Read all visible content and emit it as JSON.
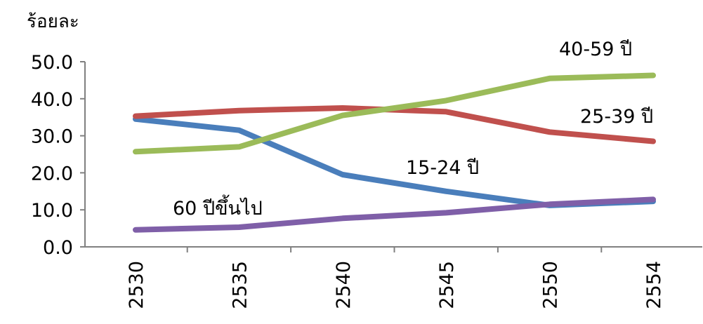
{
  "chart_data": {
    "type": "line",
    "title": "",
    "xlabel": "",
    "ylabel": "ร้อยละ",
    "categories": [
      "2530",
      "2535",
      "2540",
      "2545",
      "2550",
      "2554"
    ],
    "y_ticks": [
      "0.0",
      "10.0",
      "20.0",
      "30.0",
      "40.0",
      "50.0"
    ],
    "ylim": [
      0,
      50
    ],
    "grid": false,
    "legend": "labels-on-lines",
    "series": [
      {
        "name": "15-24 ปี",
        "color": "#4a7ebb",
        "values": [
          34.5,
          31.5,
          19.5,
          15.0,
          11.2,
          12.3
        ]
      },
      {
        "name": "25-39 ปี",
        "color": "#c0504d",
        "values": [
          35.3,
          36.8,
          37.5,
          36.5,
          31.0,
          28.5
        ]
      },
      {
        "name": "40-59 ปี",
        "color": "#9bbb59",
        "values": [
          25.7,
          27.0,
          35.5,
          39.5,
          45.5,
          46.3
        ]
      },
      {
        "name": "60 ปีขึ้นไป",
        "color": "#7f5fa8",
        "values": [
          4.6,
          5.3,
          7.7,
          9.2,
          11.5,
          12.8
        ]
      }
    ]
  }
}
